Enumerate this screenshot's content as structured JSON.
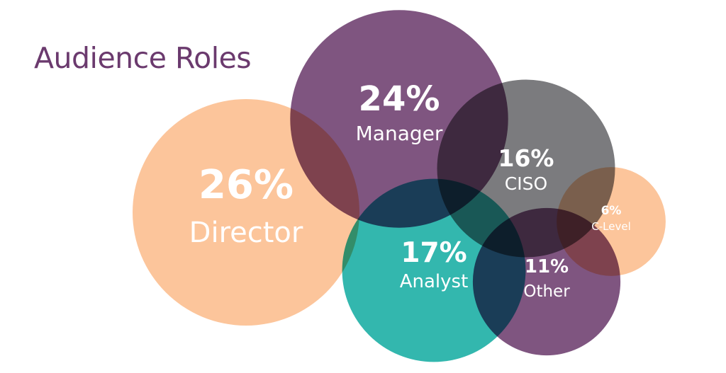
{
  "chart_data": {
    "type": "bubble",
    "title": "Audience Roles",
    "colors": {
      "title": "#6b3a6e",
      "orange": "#fcc59b",
      "purple": "#7f5580",
      "teal": "#33b7ae",
      "gray": "#7b7b7e"
    },
    "items": [
      {
        "key": "director",
        "label": "Director",
        "value": 26,
        "value_label": "26%",
        "color": "#fcc59b"
      },
      {
        "key": "manager",
        "label": "Manager",
        "value": 24,
        "value_label": "24%",
        "color": "#7f5580"
      },
      {
        "key": "analyst",
        "label": "Analyst",
        "value": 17,
        "value_label": "17%",
        "color": "#33b7ae"
      },
      {
        "key": "ciso",
        "label": "CISO",
        "value": 16,
        "value_label": "16%",
        "color": "#7b7b7e"
      },
      {
        "key": "other",
        "label": "Other",
        "value": 11,
        "value_label": "11%",
        "color": "#7f5580"
      },
      {
        "key": "c-level",
        "label": "C-Level",
        "value": 6,
        "value_label": "6%",
        "color": "#fcc59b"
      }
    ]
  }
}
